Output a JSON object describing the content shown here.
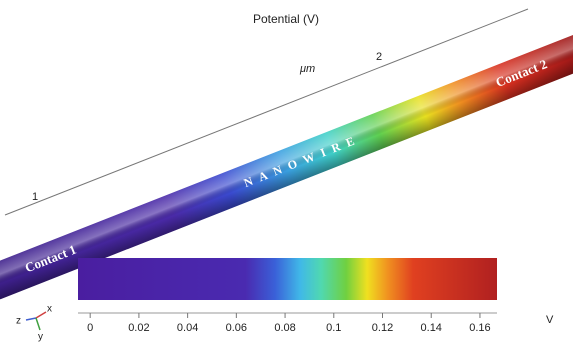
{
  "title": "Potential (V)",
  "ruler": {
    "unit": "μm",
    "labels": [
      "1",
      "2"
    ]
  },
  "wire": {
    "label": "NANOWIRE",
    "contacts": [
      "Contact 1",
      "Contact 2"
    ]
  },
  "colorbar": {
    "lim": [
      -0.005,
      0.167
    ],
    "ticks": [
      0,
      0.02,
      0.04,
      0.06,
      0.08,
      0.1,
      0.12,
      0.14,
      0.16
    ],
    "unit": "V"
  },
  "triad": {
    "labels": [
      "z",
      "x",
      "y"
    ]
  }
}
